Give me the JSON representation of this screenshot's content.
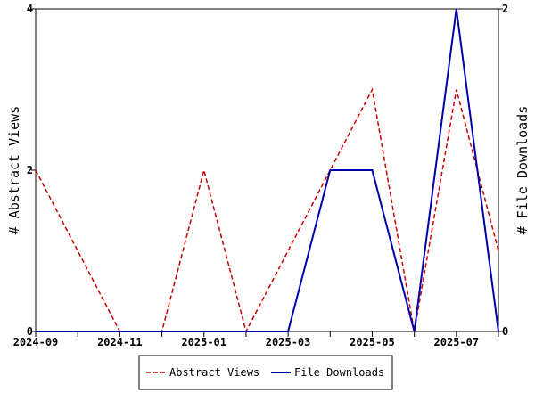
{
  "chart_data": {
    "type": "line",
    "title": "",
    "xlabel": "",
    "ylabel_left": "# Abstract Views",
    "ylabel_right": "# File Downloads",
    "x": [
      "2024-09",
      "2024-10",
      "2024-11",
      "2024-12",
      "2025-01",
      "2025-02",
      "2025-03",
      "2025-04",
      "2025-05",
      "2025-06",
      "2025-07",
      "2025-08"
    ],
    "x_tick_labels": [
      "2024-09",
      "2024-11",
      "2025-01",
      "2025-03",
      "2025-05",
      "2025-07"
    ],
    "ylim_left": [
      0,
      4
    ],
    "ylim_right": [
      0,
      2
    ],
    "y_ticks_left": [
      "0",
      "2",
      "4"
    ],
    "y_ticks_right": [
      "0",
      "2"
    ],
    "series": [
      {
        "name": "Abstract Views",
        "axis": "left",
        "color": "#cc0000",
        "style": "dashed",
        "values": [
          2,
          1,
          0,
          0,
          2,
          0,
          1,
          2,
          3,
          0,
          3,
          1
        ]
      },
      {
        "name": "File Downloads",
        "axis": "right",
        "color": "#0000aa",
        "style": "solid",
        "values": [
          0,
          0,
          0,
          0,
          0,
          0,
          0,
          1,
          1,
          0,
          2,
          0
        ]
      }
    ],
    "grid": false,
    "legend_position": "bottom"
  }
}
